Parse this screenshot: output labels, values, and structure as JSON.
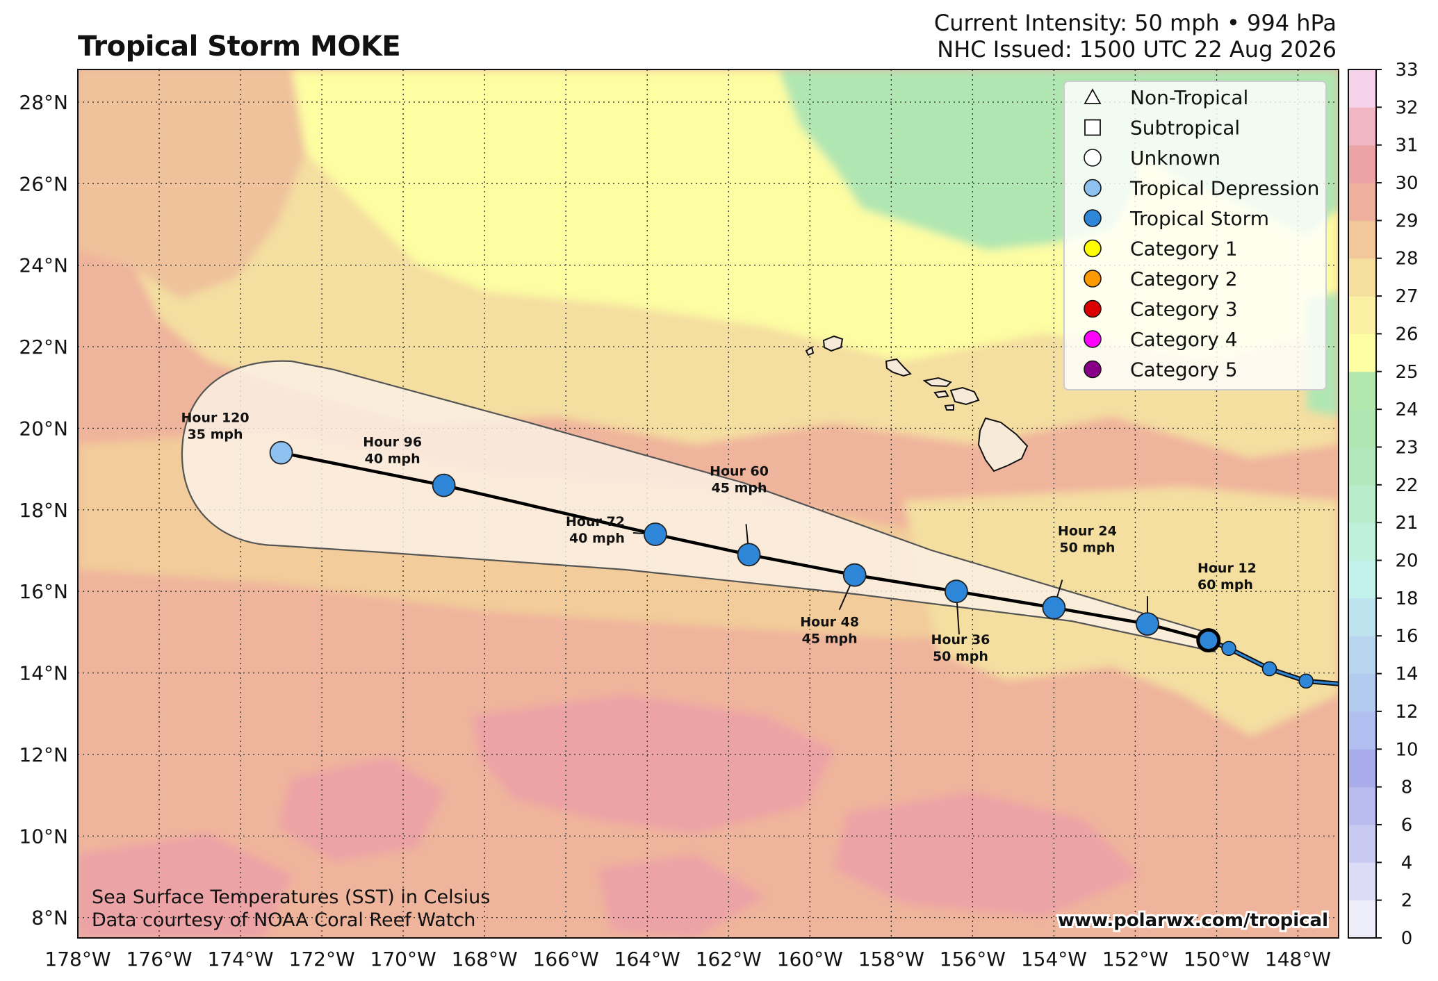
{
  "title": "Tropical Storm MOKE",
  "header": {
    "intensity": "Current Intensity: 50 mph • 994 hPa",
    "issued": "NHC Issued: 1500 UTC 22 Aug 2026"
  },
  "map": {
    "lon_range": [
      -178,
      -147
    ],
    "lat_range": [
      7.5,
      28.8
    ],
    "lon_ticks": [
      "178°W",
      "176°W",
      "174°W",
      "172°W",
      "170°W",
      "168°W",
      "166°W",
      "164°W",
      "162°W",
      "160°W",
      "158°W",
      "156°W",
      "154°W",
      "152°W",
      "150°W",
      "148°W"
    ],
    "lat_ticks": [
      "8°N",
      "10°N",
      "12°N",
      "14°N",
      "16°N",
      "18°N",
      "20°N",
      "22°N",
      "24°N",
      "26°N",
      "28°N"
    ],
    "gridlines": true
  },
  "forecast_track": [
    {
      "lon": -150.2,
      "lat": 14.8,
      "hour": "",
      "wind": "",
      "type": "Tropical Storm",
      "current": true
    },
    {
      "lon": -151.7,
      "lat": 15.2,
      "hour": "Hour 12",
      "wind": "60 mph",
      "type": "Tropical Storm"
    },
    {
      "lon": -154.0,
      "lat": 15.6,
      "hour": "Hour 24",
      "wind": "50 mph",
      "type": "Tropical Storm"
    },
    {
      "lon": -156.4,
      "lat": 16.0,
      "hour": "Hour 36",
      "wind": "50 mph",
      "type": "Tropical Storm"
    },
    {
      "lon": -158.9,
      "lat": 16.4,
      "hour": "Hour 48",
      "wind": "45 mph",
      "type": "Tropical Storm"
    },
    {
      "lon": -161.5,
      "lat": 16.9,
      "hour": "Hour 60",
      "wind": "45 mph",
      "type": "Tropical Storm"
    },
    {
      "lon": -163.8,
      "lat": 17.4,
      "hour": "Hour 72",
      "wind": "40 mph",
      "type": "Tropical Storm"
    },
    {
      "lon": -169.0,
      "lat": 18.6,
      "hour": "Hour 96",
      "wind": "40 mph",
      "type": "Tropical Storm"
    },
    {
      "lon": -173.0,
      "lat": 19.4,
      "hour": "Hour 120",
      "wind": "35 mph",
      "type": "Tropical Depression"
    }
  ],
  "past_track": [
    {
      "lon": -149.7,
      "lat": 14.6
    },
    {
      "lon": -148.7,
      "lat": 14.1
    },
    {
      "lon": -147.8,
      "lat": 13.8
    }
  ],
  "legend": [
    {
      "label": "Non-Tropical",
      "shape": "triangle",
      "color": "#ffffff"
    },
    {
      "label": "Subtropical",
      "shape": "square",
      "color": "#ffffff"
    },
    {
      "label": "Unknown",
      "shape": "circle",
      "color": "#ffffff"
    },
    {
      "label": "Tropical Depression",
      "shape": "circle",
      "color": "#8ec0f0"
    },
    {
      "label": "Tropical Storm",
      "shape": "circle",
      "color": "#2e86d8"
    },
    {
      "label": "Category 1",
      "shape": "circle",
      "color": "#ffff00"
    },
    {
      "label": "Category 2",
      "shape": "circle",
      "color": "#ff9900"
    },
    {
      "label": "Category 3",
      "shape": "circle",
      "color": "#dd0000"
    },
    {
      "label": "Category 4",
      "shape": "circle",
      "color": "#ff00ff"
    },
    {
      "label": "Category 5",
      "shape": "circle",
      "color": "#880088"
    }
  ],
  "colorbar": {
    "ticks": [
      "0",
      "2",
      "4",
      "6",
      "8",
      "10",
      "12",
      "14",
      "16",
      "18",
      "20",
      "21",
      "22",
      "23",
      "24",
      "25",
      "26",
      "27",
      "28",
      "29",
      "30",
      "31",
      "32",
      "33"
    ],
    "colors": [
      "#ffffff",
      "#eeeefa",
      "#dcdcf6",
      "#c9caf2",
      "#b9bbee",
      "#a9aceb",
      "#b0bff0",
      "#b4cbf0",
      "#b8d6f0",
      "#bde3ee",
      "#c3f1ec",
      "#bff0dc",
      "#b9eccb",
      "#b2e7bb",
      "#b0e6b2",
      "#b2e8ae",
      "#fdfda2",
      "#fbf0a3",
      "#f5de9e",
      "#f2c79a",
      "#eeb09c",
      "#eca3a6",
      "#f0b6c3",
      "#f6d3ea"
    ]
  },
  "credits": {
    "line1": "Sea Surface Temperatures (SST) in Celsius",
    "line2": "Data courtesy of NOAA Coral Reef Watch",
    "url": "www.polarwx.com/tropical"
  }
}
